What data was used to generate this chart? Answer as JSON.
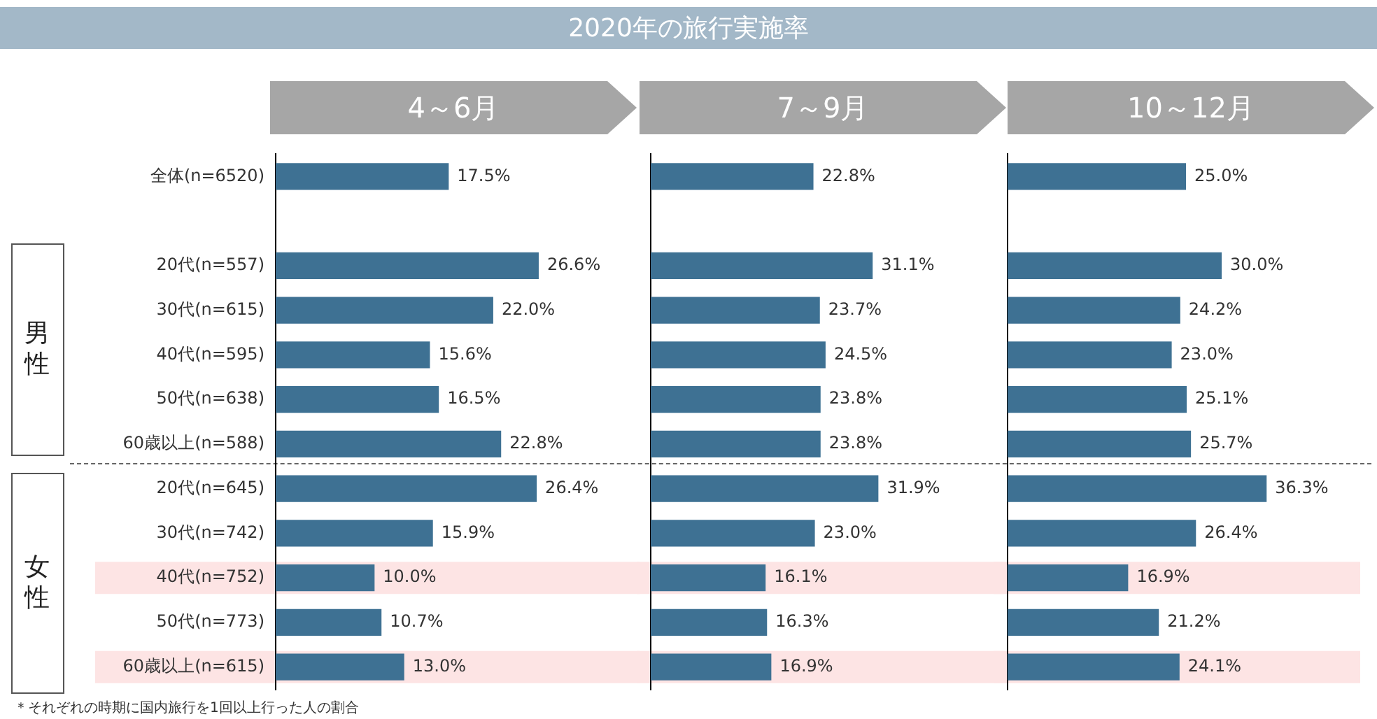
{
  "chart_data": [
    {
      "type": "bar",
      "orientation": "horizontal",
      "title": "4～6月",
      "categories": [
        "全体(n=6520)",
        null,
        "20代(n=557)",
        "30代(n=615)",
        "40代(n=595)",
        "50代(n=638)",
        "60歳以上(n=588)",
        "20代(n=645)",
        "30代(n=742)",
        "40代(n=752)",
        "50代(n=773)",
        "60歳以上(n=615)"
      ],
      "values": [
        17.5,
        null,
        26.6,
        22.0,
        15.6,
        16.5,
        22.8,
        26.4,
        15.9,
        10.0,
        10.7,
        13.0
      ],
      "value_labels": [
        "17.5%",
        null,
        "26.6%",
        "22.0%",
        "15.6%",
        "16.5%",
        "22.8%",
        "26.4%",
        "15.9%",
        "10.0%",
        "10.7%",
        "13.0%"
      ],
      "color": "#3e7193",
      "tick_labels": "y",
      "bands": [
        {
          "axis": "y",
          "from": "40代(n=752)",
          "to": "40代(n=752)",
          "color": "#fde4e4"
        },
        {
          "axis": "y",
          "from": "60歳以上(n=615)",
          "to": "60歳以上(n=615)",
          "color": "#fde4e4"
        }
      ],
      "annotations": [
        "2020年の旅行実施率",
        "男性",
        "女性",
        "＊それぞれの時期に国内旅行を1回以上行った人の割合"
      ]
    },
    {
      "type": "bar",
      "orientation": "horizontal",
      "title": "7～9月",
      "categories": [
        "全体(n=6520)",
        null,
        "20代(n=557)",
        "30代(n=615)",
        "40代(n=595)",
        "50代(n=638)",
        "60歳以上(n=588)",
        "20代(n=645)",
        "30代(n=742)",
        "40代(n=752)",
        "50代(n=773)",
        "60歳以上(n=615)"
      ],
      "values": [
        22.8,
        null,
        31.1,
        23.7,
        24.5,
        23.8,
        23.8,
        31.9,
        23.0,
        16.1,
        16.3,
        16.9
      ],
      "value_labels": [
        "22.8%",
        null,
        "31.1%",
        "23.7%",
        "24.5%",
        "23.8%",
        "23.8%",
        "31.9%",
        "23.0%",
        "16.1%",
        "16.3%",
        "16.9%"
      ],
      "color": "#3e7193",
      "tick_labels": false,
      "bands": [
        {
          "axis": "y",
          "from": "40代(n=752)",
          "to": "40代(n=752)",
          "color": "#fde4e4"
        },
        {
          "axis": "y",
          "from": "60歳以上(n=615)",
          "to": "60歳以上(n=615)",
          "color": "#fde4e4"
        }
      ]
    },
    {
      "type": "bar",
      "orientation": "horizontal",
      "title": "10～12月",
      "categories": [
        "全体(n=6520)",
        null,
        "20代(n=557)",
        "30代(n=615)",
        "40代(n=595)",
        "50代(n=638)",
        "60歳以上(n=588)",
        "20代(n=645)",
        "30代(n=742)",
        "40代(n=752)",
        "50代(n=773)",
        "60歳以上(n=615)"
      ],
      "values": [
        25.0,
        null,
        30.0,
        24.2,
        23.0,
        25.1,
        25.7,
        36.3,
        26.4,
        16.9,
        21.2,
        24.1
      ],
      "value_labels": [
        "25.0%",
        null,
        "30.0%",
        "24.2%",
        "23.0%",
        "25.1%",
        "25.7%",
        "36.3%",
        "26.4%",
        "16.9%",
        "21.2%",
        "24.1%"
      ],
      "color": "#3e7193",
      "tick_labels": false,
      "bands": [
        {
          "axis": "y",
          "from": "40代(n=752)",
          "to": "40代(n=752)",
          "color": "#fde4e4"
        },
        {
          "axis": "y",
          "from": "60歳以上(n=615)",
          "to": "60歳以上(n=615)",
          "color": "#fde4e4"
        }
      ]
    }
  ]
}
